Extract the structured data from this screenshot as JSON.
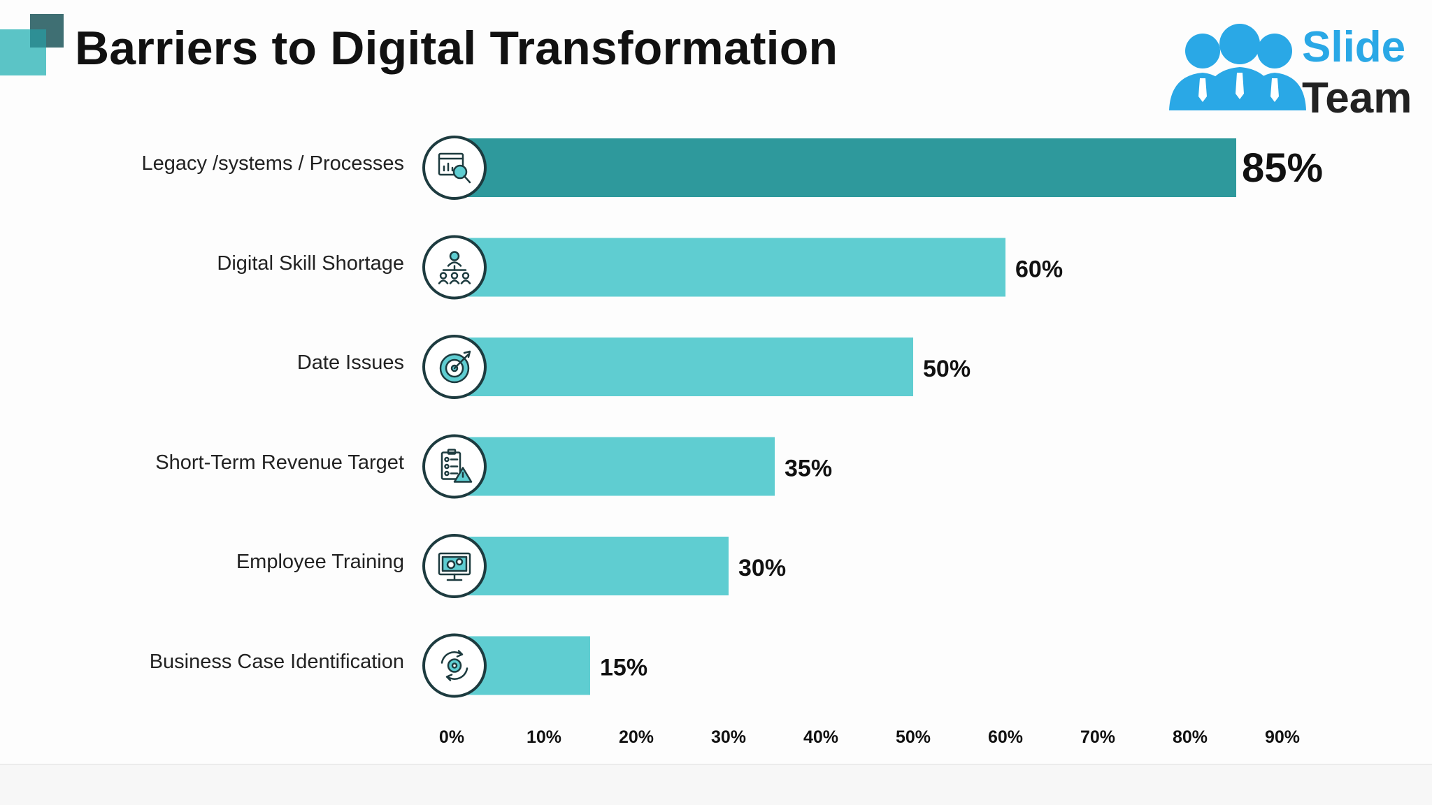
{
  "header": {
    "title": "Barriers to Digital Transformation",
    "logo_line1": "Slide",
    "logo_line2": "Team"
  },
  "colors": {
    "highlight_bar": "#2e999c",
    "bar": "#5fcdd1",
    "icon_ring": "#1d3b3f",
    "text": "#111111",
    "logo_blue": "#2aa8e6"
  },
  "chart_data": {
    "type": "bar",
    "orientation": "horizontal",
    "title": "Barriers to Digital Transformation",
    "categories": [
      "Legacy /systems / Processes",
      "Digital Skill Shortage",
      "Date Issues",
      "Short-Term Revenue Target",
      "Employee Training",
      "Business Case Identification"
    ],
    "values": [
      85,
      60,
      50,
      35,
      30,
      15
    ],
    "value_labels": [
      "85%",
      "60%",
      "50%",
      "35%",
      "30%",
      "15%"
    ],
    "icons": [
      "analytics-search-icon",
      "team-hierarchy-icon",
      "target-icon",
      "checklist-warning-icon",
      "monitor-gears-icon",
      "cycle-gear-icon"
    ],
    "xlim": [
      0,
      90
    ],
    "xticks": [
      "0%",
      "10%",
      "20%",
      "30%",
      "40%",
      "50%",
      "60%",
      "70%",
      "80%",
      "90%"
    ],
    "highlight_index": 0,
    "grid": false,
    "legend": "none"
  }
}
